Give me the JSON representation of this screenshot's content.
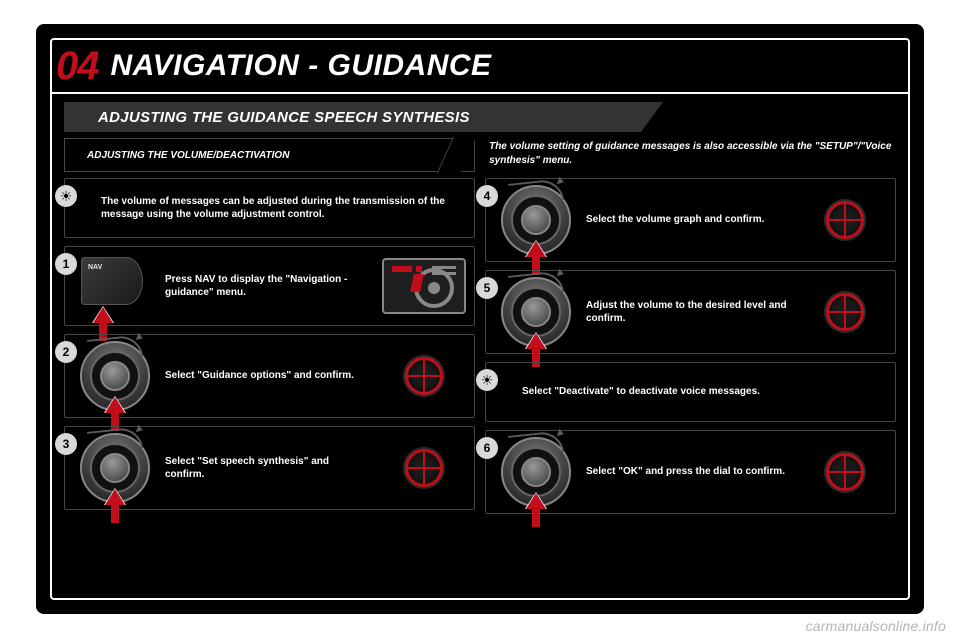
{
  "colors": {
    "page_bg": "#ffffff",
    "panel_bg": "#000000",
    "border": "#ffffff",
    "text": "#ffffff",
    "accent": "#c20e1a",
    "secbar_bg": "#333333",
    "box_border": "#444444",
    "badge_bg": "#d9d9d9",
    "muted": "#888888"
  },
  "header": {
    "number": "04",
    "title": "NAVIGATION - GUIDANCE"
  },
  "section": {
    "title": "ADJUSTING THE GUIDANCE SPEECH SYNTHESIS"
  },
  "subrow": {
    "subtitle": "ADJUSTING THE VOLUME/DEACTIVATION",
    "note": "The volume setting of guidance messages is also accessible via the \"SETUP\"/\"Voice synthesis\" menu."
  },
  "left": {
    "tip": "The volume of messages can be adjusted during the transmission of the message using the volume adjustment control.",
    "steps": [
      {
        "n": "1",
        "text": "Press NAV to display the \"Navigation - guidance\" menu.",
        "icon": "nav",
        "screen": "nav"
      },
      {
        "n": "2",
        "text": "Select \"Guidance options\" and confirm.",
        "icon": "dial",
        "screen": "dial"
      },
      {
        "n": "3",
        "text": "Select \"Set speech synthesis\" and confirm.",
        "icon": "dial",
        "screen": "dial"
      }
    ]
  },
  "right": {
    "steps_a": [
      {
        "n": "4",
        "text": "Select the volume graph and confirm.",
        "icon": "dial",
        "screen": "dial"
      },
      {
        "n": "5",
        "text": "Adjust the volume to the desired level and confirm.",
        "icon": "dial",
        "screen": "dial"
      }
    ],
    "tip": "Select \"Deactivate\" to deactivate voice messages.",
    "steps_b": [
      {
        "n": "6",
        "text": "Select \"OK\" and press the dial to confirm.",
        "icon": "dial",
        "screen": "dial"
      }
    ]
  },
  "nav_label": "NAV",
  "bulb_glyph": "☀",
  "watermark": "carmanualsonline.info"
}
